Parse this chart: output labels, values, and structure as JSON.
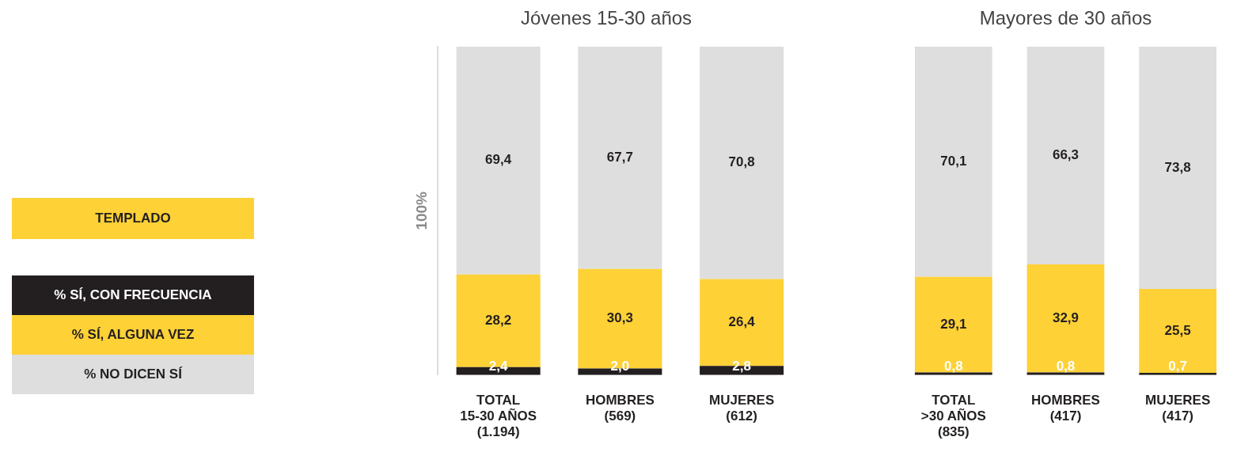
{
  "chart_data": [
    {
      "type": "bar",
      "stacked": true,
      "title": "Jóvenes 15-30 años",
      "ylabel": "100%",
      "legend_title": "TEMPLADO",
      "legend": "left",
      "tick_labels": "x",
      "categories": [
        "TOTAL\n15-30 AÑOS\n(1.194)",
        "HOMBRES\n(569)",
        "MUJERES\n(612)"
      ],
      "series": [
        {
          "name": "% SÍ, CON FRECUENCIA",
          "color": "#231f20",
          "values": [
            2.4,
            2.0,
            2.8
          ],
          "value_labels": [
            "2,4",
            "2,0",
            "2,8"
          ]
        },
        {
          "name": "% SÍ, ALGUNA VEZ",
          "color": "#fed136",
          "values": [
            28.2,
            30.3,
            26.4
          ],
          "value_labels": [
            "28,2",
            "30,3",
            "26,4"
          ]
        },
        {
          "name": "% NO DICEN SÍ",
          "color": "#dedede",
          "values": [
            69.4,
            67.7,
            70.8
          ],
          "value_labels": [
            "69,4",
            "67,7",
            "70,8"
          ]
        }
      ]
    },
    {
      "type": "bar",
      "stacked": true,
      "title": "Mayores de 30 años",
      "tick_labels": "x",
      "categories": [
        "TOTAL\n>30 AÑOS\n(835)",
        "HOMBRES\n(417)",
        "MUJERES\n(417)"
      ],
      "series": [
        {
          "color": "#231f20",
          "values": [
            0.8,
            0.8,
            0.7
          ],
          "value_labels": [
            "0,8",
            "0,8",
            "0,7"
          ]
        },
        {
          "color": "#fed136",
          "values": [
            29.1,
            32.9,
            25.5
          ],
          "value_labels": [
            "29,1",
            "32,9",
            "25,5"
          ]
        },
        {
          "color": "#dedede",
          "values": [
            70.1,
            66.3,
            73.8
          ],
          "value_labels": [
            "70,1",
            "66,3",
            "73,8"
          ]
        }
      ]
    }
  ]
}
